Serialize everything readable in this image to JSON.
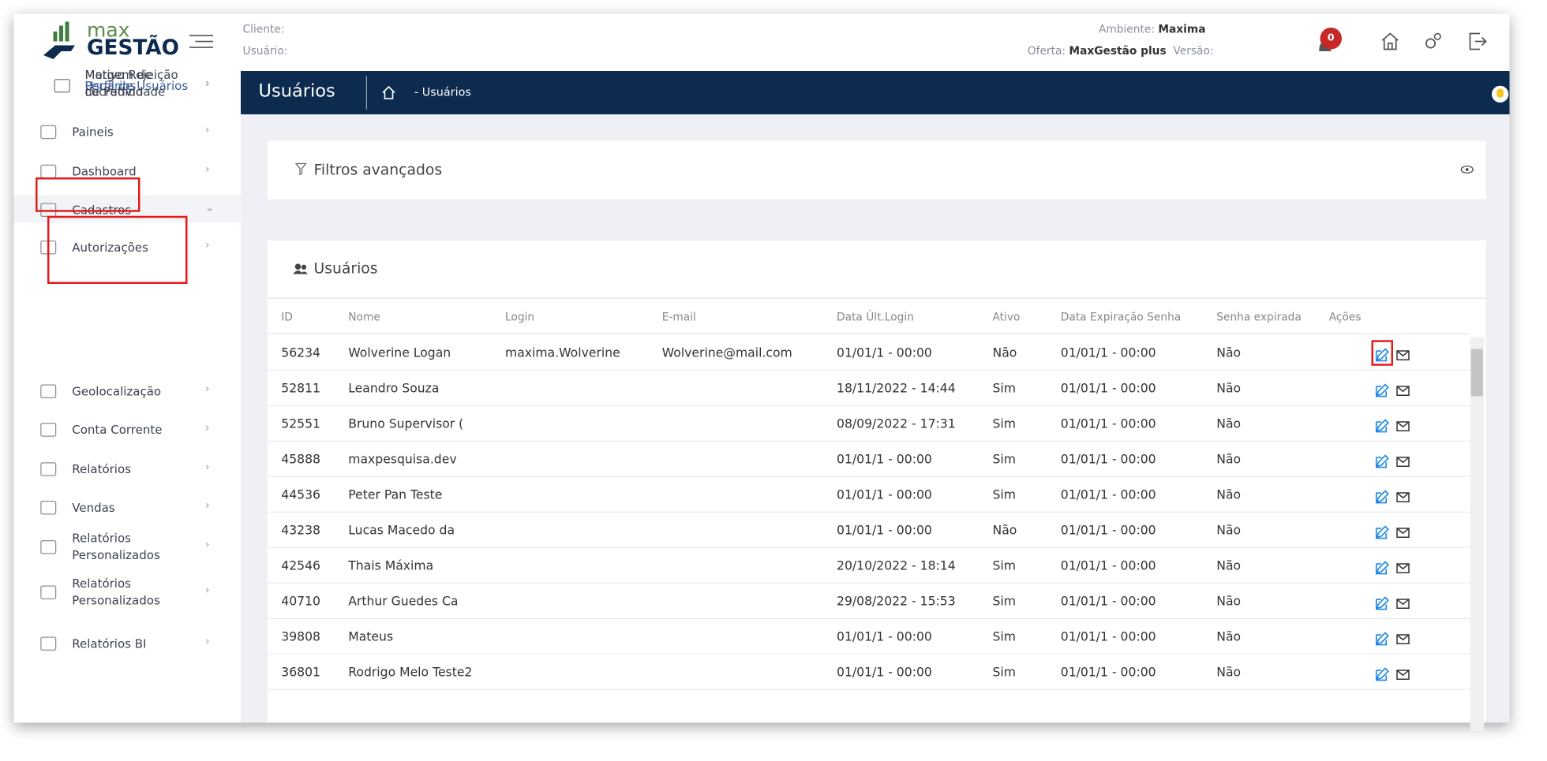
{
  "header": {
    "logo_top": "max",
    "logo_bottom": "GESTÃO",
    "client_label": "Cliente:",
    "user_label": "Usuário:",
    "ambiente_label": "Ambiente:",
    "ambiente": "Maxima",
    "oferta_label": "Oferta:",
    "oferta": "MaxGestão plus",
    "versao_label": "Versão:",
    "notifications": 0
  },
  "sidebar": {
    "items": [
      {
        "label": "Paineis"
      },
      {
        "label": "Dashboard"
      },
      {
        "label": "Cadastros",
        "children": [
          {
            "label": "Usuários"
          },
          {
            "label": "Perfil de Usuários"
          },
          {
            "label": "Margem de Lucratividade"
          },
          {
            "label": "Motivo Rejeição de Pedido"
          }
        ]
      },
      {
        "label": "Autorizações"
      },
      {
        "label": "Geolocalização"
      },
      {
        "label": "Conta Corrente"
      },
      {
        "label": "Relatórios"
      },
      {
        "label": "Vendas"
      },
      {
        "label": "Relatórios Personalizados"
      },
      {
        "label": "Relatórios Personalizados"
      },
      {
        "label": "Relatórios BI"
      }
    ]
  },
  "breadcrumb": {
    "title": "Usuários",
    "crumb": "- Usuários"
  },
  "filters": {
    "title": "Filtros avançados"
  },
  "table": {
    "title": "Usuários",
    "columns": [
      "ID",
      "Nome",
      "Login",
      "E-mail",
      "Data Últ.Login",
      "Ativo",
      "Data Expiração Senha",
      "Senha expirada",
      "Ações"
    ],
    "rows": [
      [
        "56234",
        "Wolverine Logan",
        "maxima.Wolverine",
        "Wolverine@mail.com",
        "01/01/1 - 00:00",
        "Não",
        "01/01/1 - 00:00",
        "Não"
      ],
      [
        "52811",
        "Leandro Souza",
        "",
        "",
        "18/11/2022 - 14:44",
        "Sim",
        "01/01/1 - 00:00",
        "Não"
      ],
      [
        "52551",
        "Bruno Supervisor (",
        "",
        "",
        "08/09/2022 - 17:31",
        "Sim",
        "01/01/1 - 00:00",
        "Não"
      ],
      [
        "45888",
        "maxpesquisa.dev",
        "",
        "",
        "01/01/1 - 00:00",
        "Sim",
        "01/01/1 - 00:00",
        "Não"
      ],
      [
        "44536",
        "Peter Pan Teste",
        "",
        "",
        "01/01/1 - 00:00",
        "Sim",
        "01/01/1 - 00:00",
        "Não"
      ],
      [
        "43238",
        "Lucas Macedo da",
        "",
        "",
        "01/01/1 - 00:00",
        "Não",
        "01/01/1 - 00:00",
        "Não"
      ],
      [
        "42546",
        "Thais Máxima",
        "",
        "",
        "20/10/2022 - 18:14",
        "Sim",
        "01/01/1 - 00:00",
        "Não"
      ],
      [
        "40710",
        "Arthur Guedes Ca",
        "",
        "",
        "29/08/2022 - 15:53",
        "Sim",
        "01/01/1 - 00:00",
        "Não"
      ],
      [
        "39808",
        "Mateus",
        "",
        "",
        "01/01/1 - 00:00",
        "Sim",
        "01/01/1 - 00:00",
        "Não"
      ],
      [
        "36801",
        "Rodrigo Melo Teste2",
        "",
        "",
        "01/01/1 - 00:00",
        "Sim",
        "01/01/1 - 00:00",
        "Não"
      ]
    ]
  }
}
